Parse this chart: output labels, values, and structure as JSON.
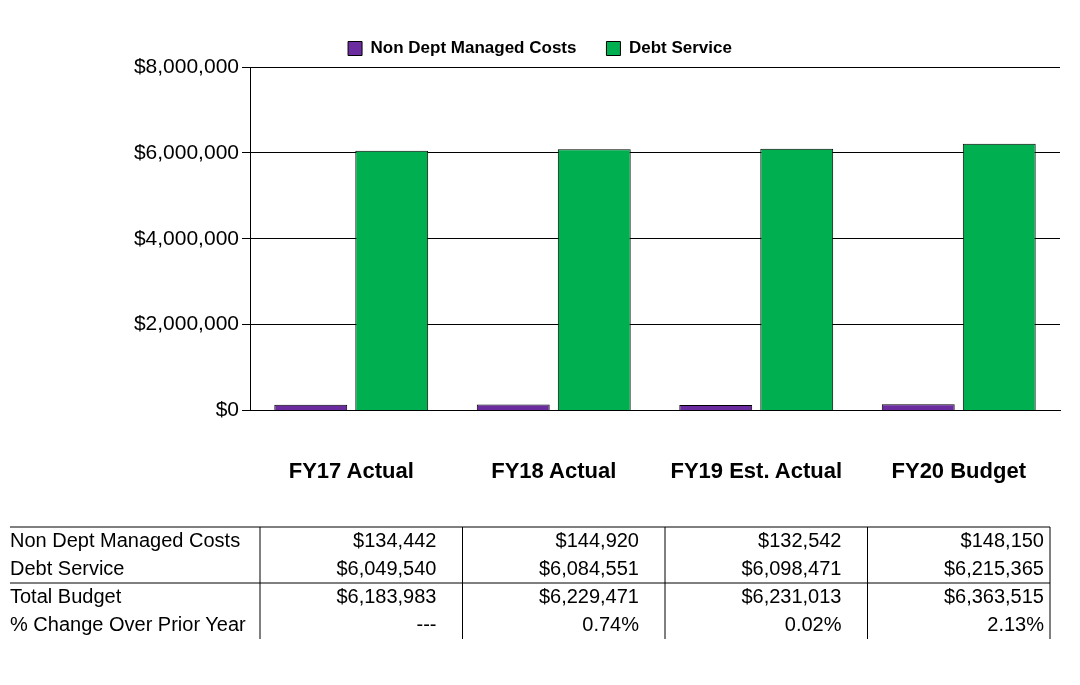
{
  "chart_data": {
    "type": "bar",
    "categories": [
      "FY17 Actual",
      "FY18 Actual",
      "FY19 Est. Actual",
      "FY20 Budget"
    ],
    "series": [
      {
        "name": "Non Dept Managed Costs",
        "color": "#6a2c9e",
        "values": [
          134442,
          144920,
          132542,
          148150
        ],
        "value_labels": [
          "$134,442",
          "$144,920",
          "$132,542",
          "$148,150"
        ]
      },
      {
        "name": "Debt Service",
        "color": "#00b050",
        "values": [
          6049540,
          6084551,
          6098471,
          6215365
        ],
        "value_labels": [
          "$6,049,540",
          "$6,084,551",
          "$6,098,471",
          "$6,215,365"
        ]
      }
    ],
    "ylim": [
      0,
      8000000
    ],
    "yticks": [
      {
        "value": 0,
        "label": "$0"
      },
      {
        "value": 2000000,
        "label": "$2,000,000"
      },
      {
        "value": 4000000,
        "label": "$4,000,000"
      },
      {
        "value": 6000000,
        "label": "$6,000,000"
      },
      {
        "value": 8000000,
        "label": "$8,000,000"
      }
    ],
    "grid": "y",
    "legend": "top",
    "annotations": [
      "Total Budget",
      "$6,183,983",
      "$6,229,471",
      "$6,231,013",
      "$6,363,515",
      "% Change Over Prior Year",
      "---",
      "0.74%",
      "0.02%",
      "2.13%"
    ]
  }
}
